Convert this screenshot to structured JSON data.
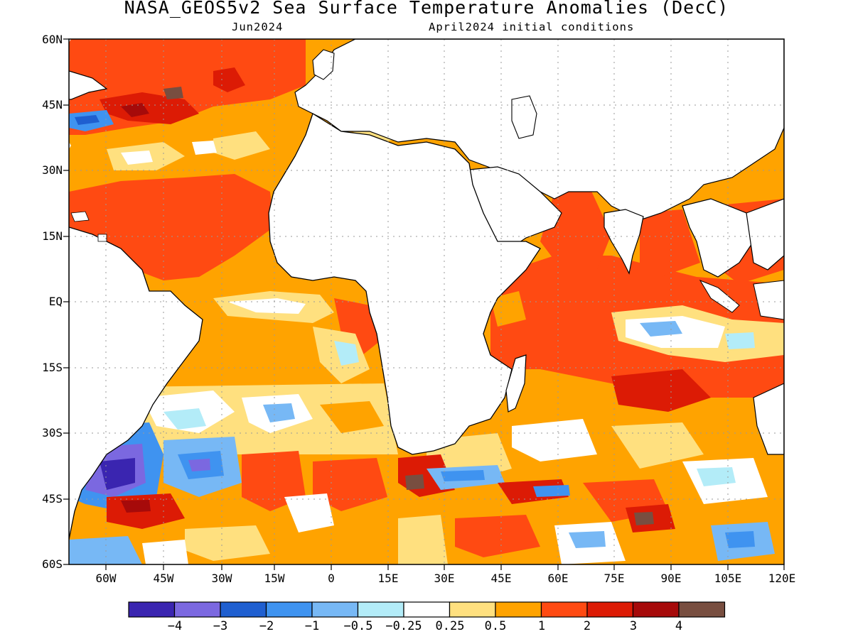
{
  "title": "NASA_GEOS5v2 Sea Surface Temperature Anomalies (DecC)",
  "subtitle_left": "Jun2024",
  "subtitle_right": "April2024 initial conditions",
  "lat_labels": [
    "60N",
    "45N",
    "30N",
    "15N",
    "EQ",
    "15S",
    "30S",
    "45S",
    "60S"
  ],
  "lon_labels": [
    "60W",
    "45W",
    "30W",
    "15W",
    "0",
    "15E",
    "30E",
    "45E",
    "60E",
    "75E",
    "90E",
    "105E",
    "120E"
  ],
  "colorbar": {
    "colors": [
      "#3a25b0",
      "#7b68e0",
      "#1f5fd0",
      "#3f93f0",
      "#77b8f5",
      "#b3ecf8",
      "#ffffff",
      "#ffe07f",
      "#ffa300",
      "#ff4a12",
      "#dc1b05",
      "#a60a0a",
      "#784e40"
    ],
    "labels": [
      "−4",
      "−3",
      "−2",
      "−1",
      "−0.5",
      "−0.25",
      "0.25",
      "0.5",
      "1",
      "2",
      "3",
      "4"
    ]
  }
}
